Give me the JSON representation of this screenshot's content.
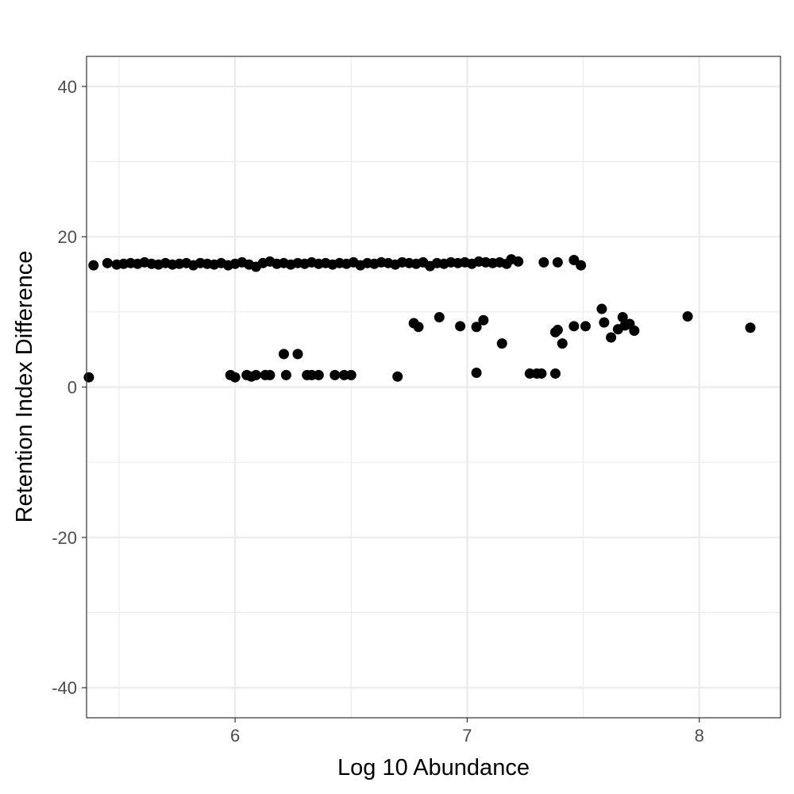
{
  "chart_data": {
    "type": "scatter",
    "title": "",
    "xlabel": "Log 10 Abundance",
    "ylabel": "Retention Index Difference",
    "xlim": [
      5.36,
      8.35
    ],
    "ylim": [
      -44,
      44
    ],
    "x_ticks": [
      6,
      7,
      8
    ],
    "x_tick_labels": [
      "6",
      "7",
      "8"
    ],
    "x_minor_gridlines": [
      5.5,
      6.5,
      7.5
    ],
    "y_ticks": [
      -40,
      -20,
      0,
      20,
      40
    ],
    "y_tick_labels": [
      "-40",
      "-20",
      "0",
      "20",
      "40"
    ],
    "y_minor_gridlines": [
      -30,
      -10,
      10,
      30
    ],
    "grid": true,
    "point_color": "#000000",
    "panel_border_color": "#333333",
    "grid_color": "#ebebeb",
    "series": [
      {
        "points": [
          [
            5.37,
            1.3
          ],
          [
            5.39,
            16.2
          ],
          [
            5.45,
            16.5
          ],
          [
            5.49,
            16.3
          ],
          [
            5.52,
            16.4
          ],
          [
            5.55,
            16.5
          ],
          [
            5.58,
            16.4
          ],
          [
            5.61,
            16.6
          ],
          [
            5.64,
            16.4
          ],
          [
            5.67,
            16.3
          ],
          [
            5.7,
            16.5
          ],
          [
            5.73,
            16.3
          ],
          [
            5.76,
            16.4
          ],
          [
            5.79,
            16.5
          ],
          [
            5.82,
            16.2
          ],
          [
            5.85,
            16.5
          ],
          [
            5.88,
            16.4
          ],
          [
            5.91,
            16.3
          ],
          [
            5.94,
            16.5
          ],
          [
            5.97,
            16.2
          ],
          [
            6.0,
            16.4
          ],
          [
            6.03,
            16.6
          ],
          [
            6.06,
            16.3
          ],
          [
            6.09,
            16.0
          ],
          [
            6.12,
            16.5
          ],
          [
            6.15,
            16.7
          ],
          [
            6.18,
            16.4
          ],
          [
            6.21,
            16.5
          ],
          [
            6.24,
            16.3
          ],
          [
            6.27,
            16.5
          ],
          [
            6.3,
            16.4
          ],
          [
            6.33,
            16.6
          ],
          [
            6.36,
            16.4
          ],
          [
            6.39,
            16.5
          ],
          [
            6.42,
            16.3
          ],
          [
            6.45,
            16.5
          ],
          [
            6.48,
            16.4
          ],
          [
            6.51,
            16.6
          ],
          [
            6.54,
            16.2
          ],
          [
            6.57,
            16.5
          ],
          [
            6.6,
            16.4
          ],
          [
            6.63,
            16.6
          ],
          [
            6.66,
            16.5
          ],
          [
            6.69,
            16.3
          ],
          [
            6.72,
            16.6
          ],
          [
            6.75,
            16.5
          ],
          [
            6.78,
            16.4
          ],
          [
            6.81,
            16.6
          ],
          [
            6.84,
            16.1
          ],
          [
            6.87,
            16.5
          ],
          [
            6.9,
            16.4
          ],
          [
            6.93,
            16.6
          ],
          [
            6.96,
            16.5
          ],
          [
            6.99,
            16.6
          ],
          [
            7.02,
            16.4
          ],
          [
            7.05,
            16.7
          ],
          [
            7.08,
            16.6
          ],
          [
            7.11,
            16.5
          ],
          [
            7.14,
            16.6
          ],
          [
            7.17,
            16.4
          ],
          [
            7.19,
            17.0
          ],
          [
            7.22,
            16.7
          ],
          [
            7.33,
            16.6
          ],
          [
            7.39,
            16.6
          ],
          [
            7.46,
            16.9
          ],
          [
            7.49,
            16.2
          ],
          [
            5.98,
            1.6
          ],
          [
            6.0,
            1.3
          ],
          [
            6.05,
            1.6
          ],
          [
            6.07,
            1.4
          ],
          [
            6.09,
            1.6
          ],
          [
            6.13,
            1.6
          ],
          [
            6.15,
            1.6
          ],
          [
            6.21,
            4.4
          ],
          [
            6.22,
            1.6
          ],
          [
            6.27,
            4.4
          ],
          [
            6.31,
            1.6
          ],
          [
            6.33,
            1.6
          ],
          [
            6.36,
            1.6
          ],
          [
            6.43,
            1.6
          ],
          [
            6.47,
            1.6
          ],
          [
            6.5,
            1.6
          ],
          [
            6.7,
            1.4
          ],
          [
            6.77,
            8.5
          ],
          [
            6.79,
            8.0
          ],
          [
            6.88,
            9.3
          ],
          [
            6.97,
            8.1
          ],
          [
            7.04,
            1.9
          ],
          [
            7.04,
            8.0
          ],
          [
            7.07,
            8.9
          ],
          [
            7.15,
            5.8
          ],
          [
            7.27,
            1.8
          ],
          [
            7.3,
            1.8
          ],
          [
            7.32,
            1.8
          ],
          [
            7.38,
            1.8
          ],
          [
            7.38,
            7.3
          ],
          [
            7.39,
            7.6
          ],
          [
            7.41,
            5.8
          ],
          [
            7.46,
            8.1
          ],
          [
            7.51,
            8.1
          ],
          [
            7.58,
            10.4
          ],
          [
            7.59,
            8.6
          ],
          [
            7.62,
            6.6
          ],
          [
            7.65,
            7.7
          ],
          [
            7.67,
            9.3
          ],
          [
            7.68,
            8.2
          ],
          [
            7.7,
            8.4
          ],
          [
            7.72,
            7.5
          ],
          [
            7.95,
            9.4
          ],
          [
            8.22,
            7.9
          ]
        ]
      }
    ]
  }
}
